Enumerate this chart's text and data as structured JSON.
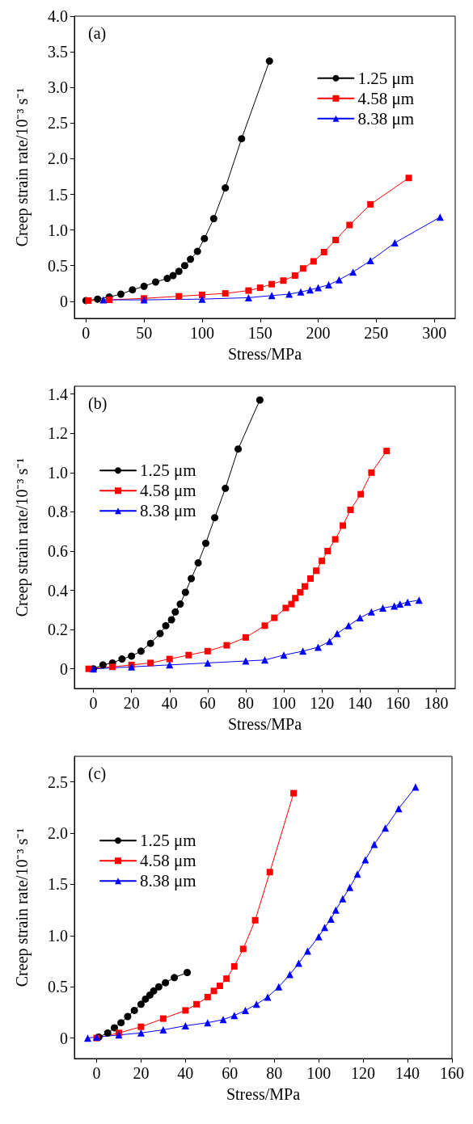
{
  "chart_data": [
    {
      "type": "line",
      "title": "(a)",
      "xlabel": "Stress/MPa",
      "ylabel": "Creep strain rate/10⁻³ s⁻¹",
      "legend": "top right",
      "grid": false,
      "xlim": [
        -10,
        318
      ],
      "xticks": [
        0,
        50,
        100,
        150,
        200,
        250,
        300
      ],
      "ylim": [
        -0.24,
        4.0
      ],
      "yticks": [
        0,
        0.5,
        {
          "value": 1,
          "label": "1.0"
        },
        1.5,
        {
          "value": 2,
          "label": "2.0"
        },
        2.5,
        {
          "value": 3,
          "label": "3.0"
        },
        3.5,
        {
          "value": 4,
          "label": "4.0"
        }
      ],
      "series": [
        {
          "name": "1.25 μm",
          "color": "#000000",
          "marker": "circle",
          "x": [
            0,
            10,
            20,
            30,
            40,
            50,
            60,
            70,
            75,
            80,
            85,
            90,
            96,
            102,
            110,
            120,
            134,
            158
          ],
          "values": [
            0.01,
            0.03,
            0.06,
            0.1,
            0.16,
            0.21,
            0.27,
            0.32,
            0.36,
            0.42,
            0.5,
            0.59,
            0.7,
            0.88,
            1.16,
            1.59,
            2.28,
            3.37
          ]
        },
        {
          "name": "4.58 μm",
          "color": "#ff0000",
          "marker": "square",
          "x": [
            2,
            20,
            50,
            80,
            100,
            120,
            140,
            150,
            160,
            170,
            180,
            187,
            196,
            205,
            215,
            227,
            245,
            278
          ],
          "values": [
            0.01,
            0.02,
            0.04,
            0.07,
            0.09,
            0.11,
            0.15,
            0.19,
            0.24,
            0.29,
            0.36,
            0.46,
            0.56,
            0.69,
            0.86,
            1.07,
            1.36,
            1.73
          ]
        },
        {
          "name": "8.38 μm",
          "color": "#0000ff",
          "marker": "triangle",
          "x": [
            15,
            50,
            100,
            140,
            160,
            175,
            185,
            193,
            200,
            209,
            218,
            230,
            245,
            266,
            305
          ],
          "values": [
            0.02,
            0.02,
            0.03,
            0.05,
            0.08,
            0.1,
            0.13,
            0.16,
            0.19,
            0.23,
            0.3,
            0.41,
            0.57,
            0.82,
            1.18
          ]
        }
      ]
    },
    {
      "type": "line",
      "title": "(b)",
      "xlabel": "Stress/MPa",
      "ylabel": "Creep strain rate/10⁻³ s⁻¹",
      "legend": "top left",
      "grid": false,
      "xlim": [
        -10,
        190
      ],
      "xticks": [
        0,
        20,
        40,
        60,
        80,
        100,
        120,
        140,
        160,
        180
      ],
      "ylim": [
        -0.1,
        1.44
      ],
      "yticks": [
        0,
        0.2,
        0.4,
        0.6,
        0.8,
        {
          "value": 1,
          "label": "1.0"
        },
        1.2,
        1.4
      ],
      "series": [
        {
          "name": "1.25 μm",
          "color": "#000000",
          "marker": "circle",
          "x": [
            0,
            5,
            10,
            15,
            20,
            25,
            30,
            35,
            38,
            41,
            43,
            45.6,
            48.3,
            51.4,
            55,
            59,
            63.7,
            69.3,
            76,
            87.4
          ],
          "values": [
            0,
            0.02,
            0.03,
            0.05,
            0.065,
            0.09,
            0.13,
            0.18,
            0.22,
            0.25,
            0.29,
            0.33,
            0.39,
            0.46,
            0.54,
            0.64,
            0.77,
            0.92,
            1.12,
            1.37
          ]
        },
        {
          "name": "4.58 μm",
          "color": "#ff0000",
          "marker": "square",
          "x": [
            -2.5,
            10,
            20,
            30,
            40,
            50,
            60,
            70,
            80,
            90,
            95,
            101,
            104,
            106,
            108.6,
            111,
            114,
            117,
            120,
            123,
            127,
            131,
            135,
            140.4,
            146,
            154
          ],
          "values": [
            0,
            0.01,
            0.02,
            0.03,
            0.05,
            0.07,
            0.09,
            0.12,
            0.16,
            0.22,
            0.26,
            0.31,
            0.33,
            0.36,
            0.39,
            0.42,
            0.46,
            0.5,
            0.55,
            0.6,
            0.66,
            0.73,
            0.81,
            0.89,
            1.0,
            1.11
          ]
        },
        {
          "name": "8.38 μm",
          "color": "#0000ff",
          "marker": "triangle",
          "x": [
            0,
            20,
            40,
            60,
            80,
            90,
            100,
            110,
            118,
            124,
            128,
            134,
            140,
            146,
            152,
            158,
            161,
            165,
            171
          ],
          "values": [
            0,
            0.01,
            0.02,
            0.03,
            0.04,
            0.045,
            0.07,
            0.09,
            0.11,
            0.14,
            0.18,
            0.22,
            0.26,
            0.29,
            0.31,
            0.32,
            0.33,
            0.34,
            0.35
          ]
        }
      ]
    },
    {
      "type": "line",
      "title": "(c)",
      "xlabel": "Stress/MPa",
      "ylabel": "Creep strain rate/10⁻³ s⁻¹",
      "legend": "top left",
      "grid": false,
      "xlim": [
        -10,
        160
      ],
      "xticks": [
        0,
        20,
        40,
        60,
        80,
        100,
        120,
        140,
        160
      ],
      "ylim": [
        -0.2,
        2.75
      ],
      "yticks": [
        0,
        0.5,
        {
          "value": 1,
          "label": "1.0"
        },
        1.5,
        {
          "value": 2,
          "label": "2.0"
        },
        2.5
      ],
      "series": [
        {
          "name": "1.25 μm",
          "color": "#000000",
          "marker": "circle",
          "x": [
            1,
            5,
            8,
            11,
            14,
            17,
            20,
            22,
            24,
            25.7,
            28,
            31,
            35,
            40.8
          ],
          "values": [
            0.01,
            0.05,
            0.1,
            0.15,
            0.21,
            0.27,
            0.33,
            0.38,
            0.42,
            0.46,
            0.5,
            0.54,
            0.59,
            0.64
          ]
        },
        {
          "name": "4.58 μm",
          "color": "#ff0000",
          "marker": "square",
          "x": [
            0,
            10,
            20,
            30,
            40,
            45,
            50,
            52.8,
            55.5,
            58.5,
            62,
            66,
            71.4,
            78,
            88.7
          ],
          "values": [
            0,
            0.05,
            0.11,
            0.19,
            0.27,
            0.33,
            0.4,
            0.46,
            0.51,
            0.58,
            0.7,
            0.87,
            1.15,
            1.62,
            2.39
          ]
        },
        {
          "name": "8.38 μm",
          "color": "#0000ff",
          "marker": "triangle",
          "x": [
            -4,
            0,
            10,
            20,
            30,
            40,
            50,
            57,
            62,
            67,
            72,
            77,
            82,
            87,
            91,
            95,
            100,
            102.7,
            105.5,
            107.7,
            110.8,
            114,
            117.4,
            121,
            125,
            130,
            136,
            143.6
          ],
          "values": [
            0,
            0.01,
            0.03,
            0.05,
            0.08,
            0.12,
            0.15,
            0.18,
            0.22,
            0.27,
            0.33,
            0.4,
            0.5,
            0.62,
            0.73,
            0.85,
            0.99,
            1.08,
            1.16,
            1.25,
            1.36,
            1.47,
            1.6,
            1.74,
            1.89,
            2.05,
            2.24,
            2.45
          ]
        }
      ]
    }
  ]
}
